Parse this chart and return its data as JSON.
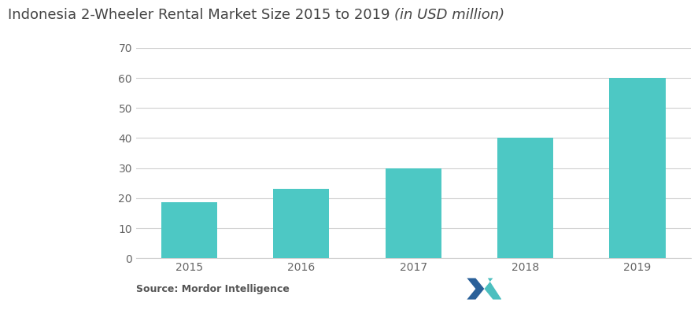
{
  "title_normal": "Indonesia 2-Wheeler Rental Market Size 2015 to 2019 ",
  "title_italic": "(in USD million)",
  "categories": [
    "2015",
    "2016",
    "2017",
    "2018",
    "2019"
  ],
  "values": [
    18.5,
    23,
    30,
    40,
    60
  ],
  "bar_color": "#4DC8C4",
  "ylim": [
    0,
    70
  ],
  "yticks": [
    0,
    10,
    20,
    30,
    40,
    50,
    60,
    70
  ],
  "background_color": "#ffffff",
  "grid_color": "#d0d0d0",
  "source_text": "Source: Mordor Intelligence",
  "title_fontsize": 13,
  "tick_fontsize": 10,
  "source_fontsize": 9,
  "bar_width": 0.5,
  "logo_color1": "#2a6099",
  "logo_color2": "#4BBFBF"
}
